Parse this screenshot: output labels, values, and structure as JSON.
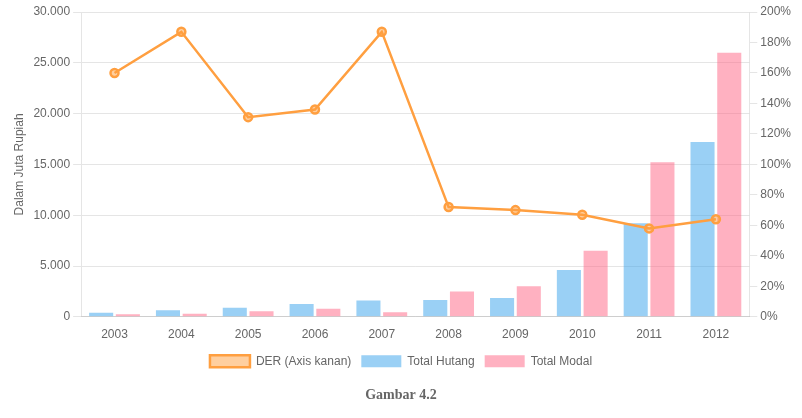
{
  "chart_data": {
    "type": "bar",
    "title": "Gambar 4.2",
    "ylabel": "Dalam Juta Rupiah",
    "categories": [
      "2003",
      "2004",
      "2005",
      "2006",
      "2007",
      "2008",
      "2009",
      "2010",
      "2011",
      "2012"
    ],
    "series": [
      {
        "name": "Total Hutang",
        "type": "bar",
        "values": [
          400,
          650,
          900,
          1250,
          1600,
          1650,
          1850,
          4600,
          9200,
          17200
        ]
      },
      {
        "name": "Total Modal",
        "type": "bar",
        "values": [
          250,
          300,
          550,
          800,
          450,
          2500,
          3000,
          6500,
          15200,
          26000
        ]
      },
      {
        "name": "DER (Axis kanan)",
        "type": "line",
        "axis": "y2",
        "marker": "circle",
        "values": [
          1.6,
          1.87,
          1.31,
          1.36,
          1.87,
          0.72,
          0.7,
          0.67,
          0.58,
          0.64
        ]
      }
    ],
    "ylim": [
      0,
      30000
    ],
    "yticks": [
      0,
      {
        "value": 5000,
        "label": "5.000"
      },
      {
        "value": 10000,
        "label": "10.000"
      },
      {
        "value": 15000,
        "label": "15.000"
      },
      {
        "value": 20000,
        "label": "20.000"
      },
      {
        "value": 25000,
        "label": "25.000"
      },
      {
        "value": 30000,
        "label": "30.000"
      }
    ],
    "y2lim": [
      0,
      2.0
    ],
    "y2ticks": [
      {
        "value": 0.0,
        "label": "0%"
      },
      {
        "value": 0.2,
        "label": "20%"
      },
      {
        "value": 0.4,
        "label": "40%"
      },
      {
        "value": 0.6,
        "label": "60%"
      },
      {
        "value": 0.8,
        "label": "80%"
      },
      {
        "value": 1.0,
        "label": "100%"
      },
      {
        "value": 1.2,
        "label": "120%"
      },
      {
        "value": 1.4,
        "label": "140%"
      },
      {
        "value": 1.6,
        "label": "160%"
      },
      {
        "value": 1.8,
        "label": "180%"
      },
      {
        "value": 2.0,
        "label": "200%"
      }
    ],
    "grid": true,
    "legend": "bottom"
  }
}
